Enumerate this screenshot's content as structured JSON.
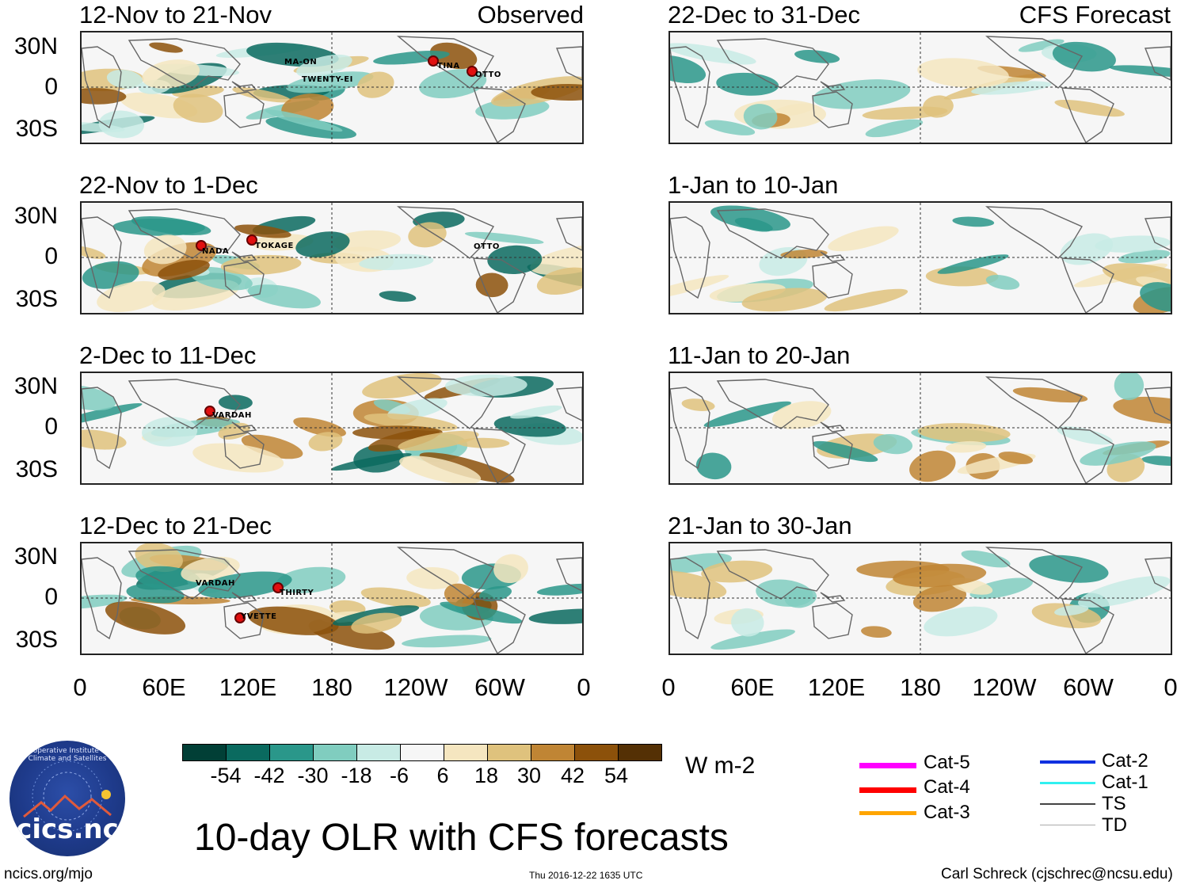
{
  "colors": {
    "levels": [
      "#013f36",
      "#0a6a5f",
      "#2a978a",
      "#80cdbf",
      "#c8ebe5",
      "#f6f6f6",
      "#f5e6c0",
      "#dfc27d",
      "#c08534",
      "#8c510a",
      "#543005"
    ],
    "land": "#666666"
  },
  "lat_labels": [
    "30N",
    "0",
    "30S"
  ],
  "lon_labels": [
    "0",
    "60E",
    "120E",
    "180",
    "120W",
    "60W",
    "0"
  ],
  "observed": {
    "tag": "Observed",
    "panels": [
      {
        "title": "12-Nov to 21-Nov",
        "storms": [
          "TINA",
          "OTTO",
          "MA-ON",
          "TWENTY-EI"
        ]
      },
      {
        "title": "22-Nov to 1-Dec",
        "storms": [
          "NADA",
          "TOKAGE",
          "OTTO"
        ]
      },
      {
        "title": "2-Dec to 11-Dec",
        "storms": [
          "VARDAH"
        ]
      },
      {
        "title": "12-Dec to 21-Dec",
        "storms": [
          "VARDAH",
          "THIRTY",
          "YVETTE"
        ]
      }
    ]
  },
  "forecast": {
    "tag": "CFS Forecast",
    "panels": [
      {
        "title": "22-Dec to 31-Dec"
      },
      {
        "title": "1-Jan to 10-Jan"
      },
      {
        "title": "11-Jan to 20-Jan"
      },
      {
        "title": "21-Jan to 30-Jan"
      }
    ]
  },
  "colorbar": {
    "ticks": [
      "-54",
      "-42",
      "-30",
      "-18",
      "-6",
      "6",
      "18",
      "30",
      "42",
      "54"
    ],
    "units": "W m-2"
  },
  "legend": [
    {
      "label": "Cat-5",
      "color": "#ff00ff"
    },
    {
      "label": "Cat-4",
      "color": "#ff0000"
    },
    {
      "label": "Cat-3",
      "color": "#ffa500"
    },
    {
      "label": "Cat-2",
      "color": "#1030e0"
    },
    {
      "label": "Cat-1",
      "color": "#30f0f0"
    },
    {
      "label": "TS",
      "color": "#444444"
    },
    {
      "label": "TD",
      "color": "#aaaaaa"
    }
  ],
  "title": "10-day OLR with CFS forecasts",
  "logo_text": "cics.nc",
  "logo_ring": "Cooperative Institute for Climate and Satellites",
  "footer": {
    "left": "ncics.org/mjo",
    "center": "Thu 2016-12-22 1635 UTC",
    "right": "Carl Schreck (cjschrec@ncsu.edu)"
  }
}
